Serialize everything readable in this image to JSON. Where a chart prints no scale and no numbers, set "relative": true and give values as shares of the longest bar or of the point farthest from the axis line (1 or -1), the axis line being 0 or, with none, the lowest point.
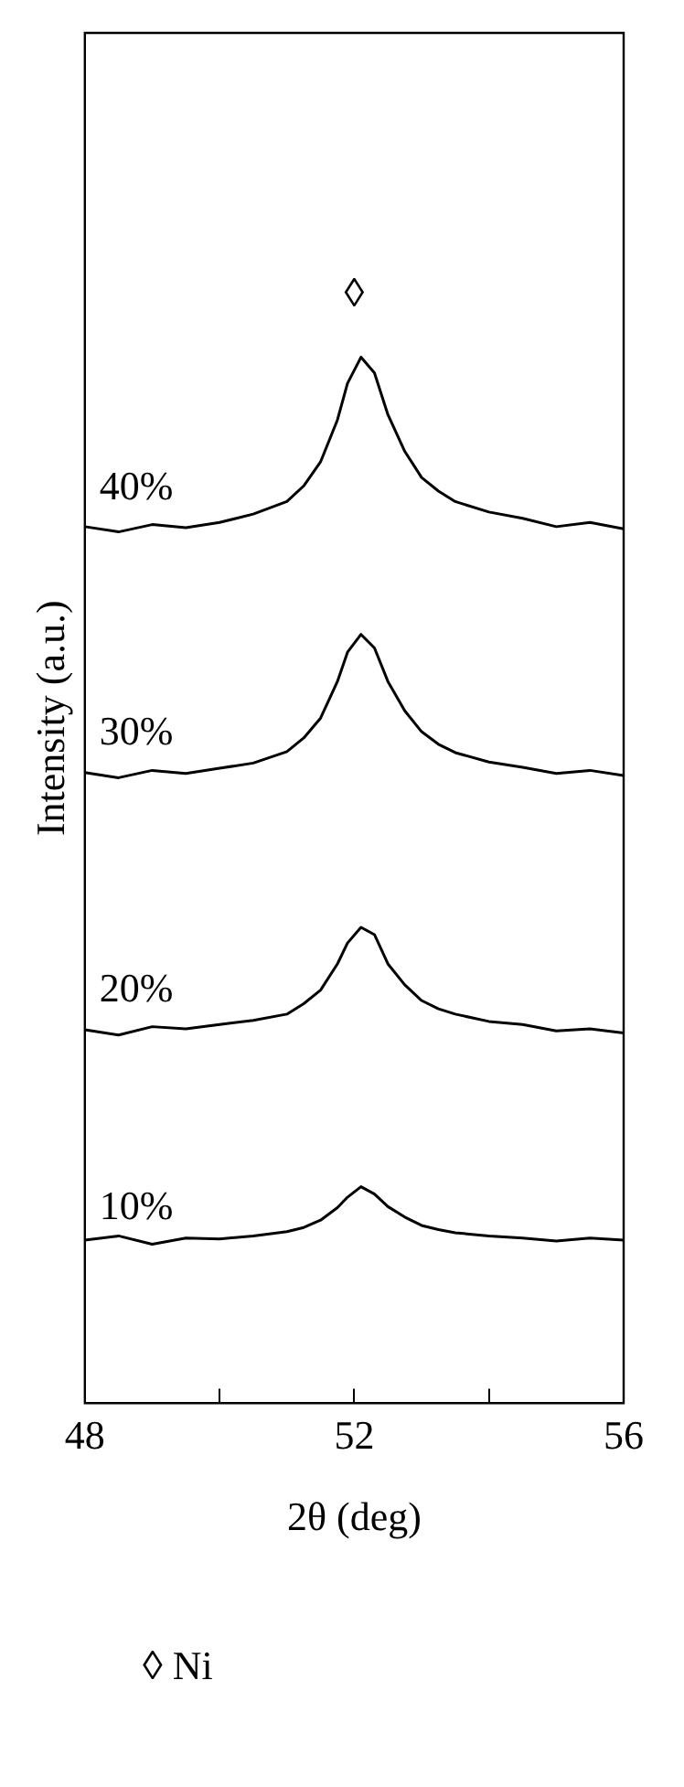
{
  "chart_data": {
    "type": "line",
    "relative": true,
    "xlabel": "2θ (deg)",
    "ylabel": "Intensity (a.u.)",
    "x": [
      48,
      48.5,
      49,
      49.5,
      50,
      50.5,
      51,
      51.25,
      51.5,
      51.75,
      51.9,
      52.1,
      52.3,
      52.5,
      52.75,
      53,
      53.25,
      53.5,
      54,
      54.5,
      55,
      55.5,
      56
    ],
    "xlim": [
      48,
      56
    ],
    "xticks": [
      48,
      {
        "value": 50,
        "label": null
      },
      52,
      {
        "value": 54,
        "label": null
      },
      56
    ],
    "marker": "none",
    "line_style": "solid",
    "grid": false,
    "legend": false,
    "series": [
      {
        "name": "10%",
        "color": "#000000",
        "values": [
          0.156,
          0.16,
          0.152,
          0.158,
          0.157,
          0.16,
          0.164,
          0.168,
          0.175,
          0.187,
          0.197,
          0.207,
          0.2,
          0.188,
          0.178,
          0.17,
          0.166,
          0.163,
          0.16,
          0.158,
          0.155,
          0.158,
          0.156
        ]
      },
      {
        "name": "20%",
        "color": "#000000",
        "values": [
          0.357,
          0.352,
          0.36,
          0.358,
          0.362,
          0.366,
          0.372,
          0.382,
          0.395,
          0.42,
          0.44,
          0.455,
          0.448,
          0.42,
          0.4,
          0.385,
          0.377,
          0.372,
          0.365,
          0.362,
          0.356,
          0.358,
          0.354
        ]
      },
      {
        "name": "30%",
        "color": "#000000",
        "values": [
          0.603,
          0.598,
          0.605,
          0.602,
          0.607,
          0.612,
          0.623,
          0.636,
          0.655,
          0.69,
          0.718,
          0.735,
          0.722,
          0.69,
          0.662,
          0.642,
          0.63,
          0.622,
          0.613,
          0.608,
          0.602,
          0.605,
          0.6
        ]
      },
      {
        "name": "40%",
        "color": "#000000",
        "values": [
          0.838,
          0.833,
          0.84,
          0.837,
          0.842,
          0.85,
          0.862,
          0.877,
          0.9,
          0.94,
          0.975,
          1,
          0.985,
          0.945,
          0.91,
          0.885,
          0.872,
          0.862,
          0.852,
          0.846,
          0.838,
          0.842,
          0.836
        ]
      }
    ],
    "annotations": [
      "◊",
      "◊ Ni"
    ]
  }
}
